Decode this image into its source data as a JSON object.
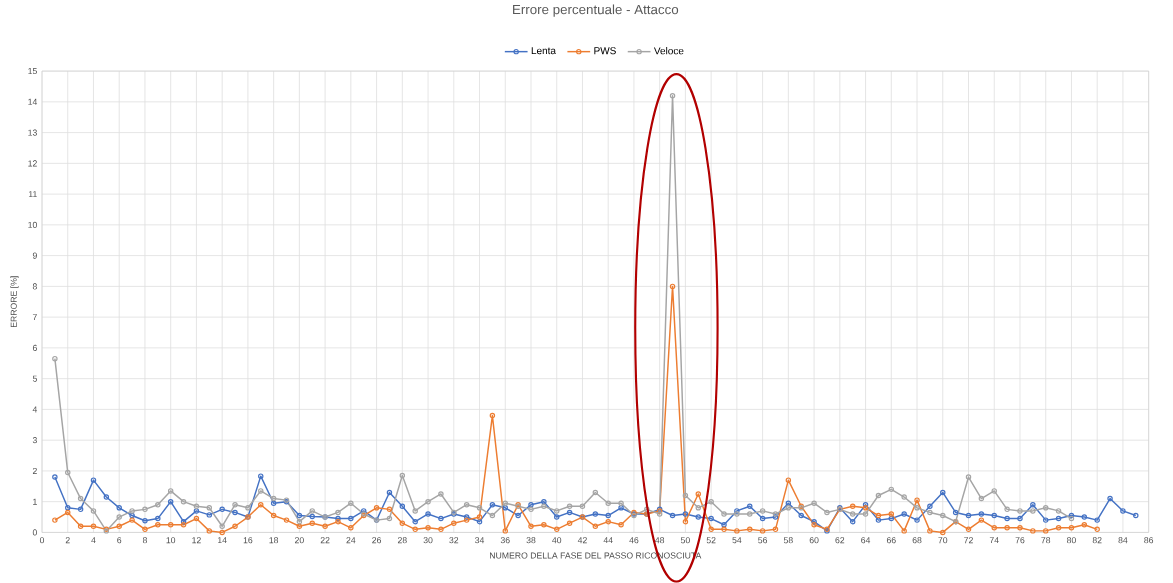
{
  "chart_data": {
    "type": "line",
    "title": "Errore percentuale - Attacco",
    "xlabel": "NUMERO DELLA FASE DEL PASSO RICONOSCIUTA",
    "ylabel": "ERRORE [%]",
    "xlim": [
      0,
      86
    ],
    "xticks": [
      0,
      2,
      4,
      6,
      8,
      10,
      12,
      14,
      16,
      18,
      20,
      22,
      24,
      26,
      28,
      30,
      32,
      34,
      36,
      38,
      40,
      42,
      44,
      46,
      48,
      50,
      52,
      54,
      56,
      58,
      60,
      62,
      64,
      66,
      68,
      70,
      72,
      74,
      76,
      78,
      80,
      82,
      84,
      86
    ],
    "ylim": [
      0,
      15
    ],
    "yticks": [
      0,
      1,
      2,
      3,
      4,
      5,
      6,
      7,
      8,
      9,
      10,
      11,
      12,
      13,
      14,
      15
    ],
    "grid": true,
    "legend": "top",
    "marker": "circle",
    "line_style": "solid",
    "series": [
      {
        "name": "Lenta",
        "color": "#4472c4",
        "x": [
          1,
          2,
          3,
          4,
          5,
          6,
          7,
          8,
          9,
          10,
          11,
          12,
          13,
          14,
          15,
          16,
          17,
          18,
          19,
          20,
          21,
          22,
          23,
          24,
          25,
          26,
          27,
          28,
          29,
          30,
          31,
          32,
          33,
          34,
          35,
          36,
          37,
          38,
          39,
          40,
          41,
          42,
          43,
          44,
          45,
          46,
          47,
          48,
          49,
          50,
          51,
          52,
          53,
          54,
          55,
          56,
          57,
          58,
          59,
          60,
          61,
          62,
          63,
          64,
          65,
          66,
          67,
          68,
          69,
          70,
          71,
          72,
          73,
          74,
          75,
          76,
          77,
          78,
          79,
          80,
          81,
          82,
          83,
          84,
          85
        ],
        "values": [
          1.8,
          0.8,
          0.75,
          1.7,
          1.15,
          0.8,
          0.55,
          0.38,
          0.45,
          1.0,
          0.35,
          0.7,
          0.57,
          0.75,
          0.65,
          0.5,
          1.83,
          0.95,
          1.0,
          0.55,
          0.52,
          0.5,
          0.45,
          0.45,
          0.7,
          0.4,
          1.3,
          0.85,
          0.35,
          0.6,
          0.45,
          0.6,
          0.5,
          0.35,
          0.9,
          0.8,
          0.55,
          0.9,
          1.0,
          0.5,
          0.65,
          0.5,
          0.6,
          0.55,
          0.8,
          0.6,
          0.6,
          0.75,
          0.55,
          0.6,
          0.5,
          0.45,
          0.25,
          0.7,
          0.85,
          0.45,
          0.5,
          0.95,
          0.55,
          0.35,
          0.05,
          0.8,
          0.35,
          0.9,
          0.4,
          0.45,
          0.6,
          0.4,
          0.85,
          1.3,
          0.65,
          0.55,
          0.6,
          0.55,
          0.45,
          0.45,
          0.9,
          0.4,
          0.45,
          0.55,
          0.5,
          0.4,
          1.1,
          0.7,
          0.55
        ]
      },
      {
        "name": "PWS",
        "color": "#ed7d31",
        "x": [
          1,
          2,
          3,
          4,
          5,
          6,
          7,
          8,
          9,
          10,
          11,
          12,
          13,
          14,
          15,
          16,
          17,
          18,
          19,
          20,
          21,
          22,
          23,
          24,
          25,
          26,
          27,
          28,
          29,
          30,
          31,
          32,
          33,
          34,
          35,
          36,
          37,
          38,
          39,
          40,
          41,
          42,
          43,
          44,
          45,
          46,
          47,
          48,
          49,
          50,
          51,
          52,
          53,
          54,
          55,
          56,
          57,
          58,
          59,
          60,
          61,
          62,
          63,
          64,
          65,
          66,
          67,
          68,
          69,
          70,
          71,
          72,
          73,
          74,
          75,
          76,
          77,
          78,
          79,
          80,
          81,
          82
        ],
        "values": [
          0.4,
          0.65,
          0.2,
          0.2,
          0.1,
          0.2,
          0.4,
          0.1,
          0.25,
          0.25,
          0.25,
          0.45,
          0.05,
          0.0,
          0.2,
          0.5,
          0.9,
          0.55,
          0.4,
          0.2,
          0.3,
          0.2,
          0.35,
          0.15,
          0.55,
          0.8,
          0.75,
          0.3,
          0.1,
          0.15,
          0.1,
          0.3,
          0.4,
          0.5,
          3.8,
          0.05,
          0.9,
          0.2,
          0.25,
          0.1,
          0.3,
          0.5,
          0.2,
          0.35,
          0.25,
          0.65,
          0.6,
          0.7,
          8.0,
          0.35,
          1.25,
          0.1,
          0.1,
          0.05,
          0.1,
          0.05,
          0.1,
          1.7,
          0.85,
          0.25,
          0.1,
          0.75,
          0.85,
          0.8,
          0.55,
          0.6,
          0.05,
          1.05,
          0.05,
          0.0,
          0.35,
          0.1,
          0.4,
          0.15,
          0.15,
          0.15,
          0.05,
          0.05,
          0.15,
          0.15,
          0.25,
          0.1
        ]
      },
      {
        "name": "Veloce",
        "color": "#a5a5a5",
        "x": [
          1,
          2,
          3,
          4,
          5,
          6,
          7,
          8,
          9,
          10,
          11,
          12,
          13,
          14,
          15,
          16,
          17,
          18,
          19,
          20,
          21,
          22,
          23,
          24,
          25,
          26,
          27,
          28,
          29,
          30,
          31,
          32,
          33,
          34,
          35,
          36,
          37,
          38,
          39,
          40,
          41,
          42,
          43,
          44,
          45,
          46,
          47,
          48,
          49,
          50,
          51,
          52,
          53,
          54,
          55,
          56,
          57,
          58,
          59,
          60,
          61,
          62,
          63,
          64,
          65,
          66,
          67,
          68,
          69,
          70,
          71,
          72,
          73,
          74,
          75,
          76,
          77,
          78,
          79,
          80
        ],
        "values": [
          5.65,
          1.95,
          1.1,
          0.7,
          0.05,
          0.5,
          0.7,
          0.75,
          0.9,
          1.35,
          1.0,
          0.85,
          0.8,
          0.2,
          0.9,
          0.8,
          1.35,
          1.1,
          1.05,
          0.35,
          0.7,
          0.5,
          0.65,
          0.95,
          0.6,
          0.4,
          0.45,
          1.85,
          0.7,
          1.0,
          1.25,
          0.65,
          0.9,
          0.8,
          0.55,
          0.95,
          0.85,
          0.75,
          0.85,
          0.7,
          0.85,
          0.85,
          1.3,
          0.95,
          0.95,
          0.55,
          0.75,
          0.6,
          14.2,
          1.2,
          0.8,
          1.0,
          0.6,
          0.6,
          0.6,
          0.7,
          0.6,
          0.8,
          0.8,
          0.95,
          0.65,
          0.75,
          0.6,
          0.6,
          1.2,
          1.4,
          1.15,
          0.8,
          0.65,
          0.55,
          0.35,
          1.8,
          1.1,
          1.35,
          0.75,
          0.7,
          0.7,
          0.8,
          0.7,
          0.45
        ]
      }
    ]
  }
}
